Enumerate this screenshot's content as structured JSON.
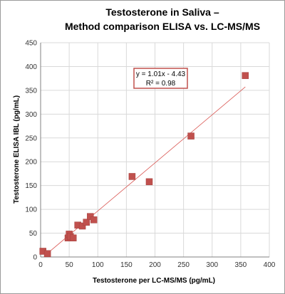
{
  "chart_data": {
    "type": "scatter",
    "title_line1": "Testosterone in Saliva –",
    "title_line2": "Method comparison ELISA vs. LC-MS/MS",
    "xlabel": "Testosterone per LC-MS/MS (pg/mL)",
    "ylabel": "Testosterone ELISA IBL (pg/mL)",
    "xlim": [
      0,
      400
    ],
    "ylim": [
      0,
      450
    ],
    "x_ticks": [
      0,
      50,
      100,
      150,
      200,
      250,
      300,
      350,
      400
    ],
    "y_ticks": [
      0,
      50,
      100,
      150,
      200,
      250,
      300,
      350,
      400,
      450
    ],
    "grid": true,
    "points": [
      {
        "x": 4,
        "y": 12
      },
      {
        "x": 12,
        "y": 7
      },
      {
        "x": 48,
        "y": 40
      },
      {
        "x": 50,
        "y": 48
      },
      {
        "x": 52,
        "y": 43
      },
      {
        "x": 57,
        "y": 40
      },
      {
        "x": 65,
        "y": 67
      },
      {
        "x": 73,
        "y": 65
      },
      {
        "x": 80,
        "y": 73
      },
      {
        "x": 87,
        "y": 85
      },
      {
        "x": 93,
        "y": 78
      },
      {
        "x": 160,
        "y": 169
      },
      {
        "x": 190,
        "y": 158
      },
      {
        "x": 263,
        "y": 254
      },
      {
        "x": 358,
        "y": 381
      }
    ],
    "trendline": {
      "slope": 1.01,
      "intercept": -4.43,
      "x_start": 6,
      "x_end": 358
    },
    "equation": "y = 1.01x - 4.43",
    "r_squared": "R² = 0.98",
    "colors": {
      "marker": "#c0504d",
      "trendline": "#d9534f",
      "box_border": "#c0504d",
      "grid": "#d9d9d9"
    }
  }
}
